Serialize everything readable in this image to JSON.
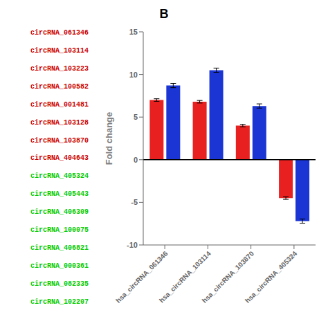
{
  "chart_data": {
    "type": "bar",
    "title": "B",
    "y_label": "Fold change",
    "categories": [
      "hsa_circRNA_061346",
      "hsa_circRNA_103114",
      "hsa_circRNA_103870",
      "hsa_circRNA_405324"
    ],
    "series": [
      {
        "color": "#e82020",
        "values": [
          7.0,
          6.8,
          4.0,
          -4.5
        ],
        "errors": [
          0.15,
          0.15,
          0.15,
          0.15
        ]
      },
      {
        "color": "#1a35d4",
        "values": [
          8.7,
          10.5,
          6.3,
          -7.2
        ],
        "errors": [
          0.25,
          0.25,
          0.25,
          0.25
        ]
      }
    ],
    "ylim": [
      -10,
      15
    ],
    "yticks": [
      -10,
      -5,
      0,
      5,
      10,
      15
    ],
    "grid": false,
    "annotations": [
      {
        "text": "circRNA_061346",
        "color": "#cc0000"
      },
      {
        "text": "circRNA_103114",
        "color": "#cc0000"
      },
      {
        "text": "circRNA_103223",
        "color": "#cc0000"
      },
      {
        "text": "circRNA_100582",
        "color": "#cc0000"
      },
      {
        "text": "circRNA_001481",
        "color": "#cc0000"
      },
      {
        "text": "circRNA_103128",
        "color": "#cc0000"
      },
      {
        "text": "circRNA_103870",
        "color": "#cc0000"
      },
      {
        "text": "circRNA_404643",
        "color": "#cc0000"
      },
      {
        "text": "circRNA_405324",
        "color": "#00cc00"
      },
      {
        "text": "circRNA_405443",
        "color": "#00cc00"
      },
      {
        "text": "circRNA_406309",
        "color": "#00cc00"
      },
      {
        "text": "circRNA_100075",
        "color": "#00cc00"
      },
      {
        "text": "circRNA_406821",
        "color": "#00cc00"
      },
      {
        "text": "circRNA_000361",
        "color": "#00cc00"
      },
      {
        "text": "circRNA_082335",
        "color": "#00cc00"
      },
      {
        "text": "circRNA_102207",
        "color": "#00cc00"
      }
    ]
  }
}
